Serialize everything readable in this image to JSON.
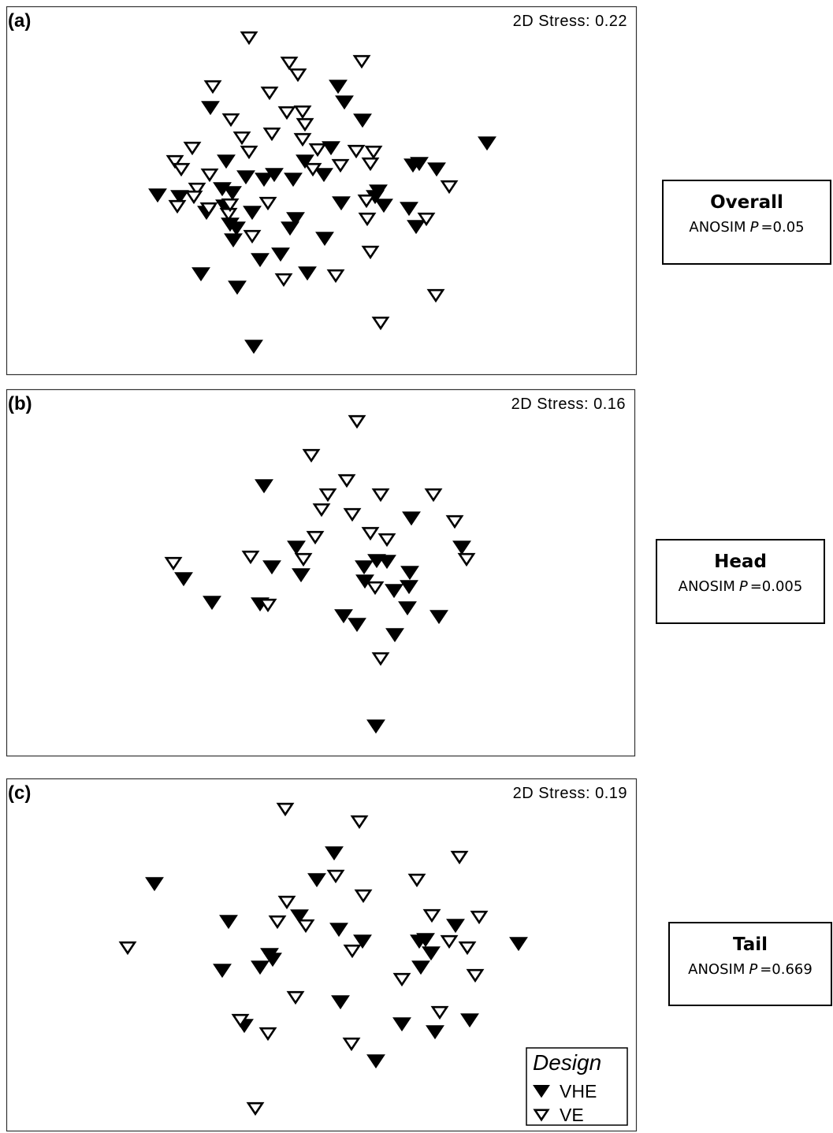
{
  "chart_data": [
    {
      "type": "scatter",
      "panel_label": "(a)",
      "annotation": "2D Stress: 0.22",
      "side_box": {
        "title": "Overall",
        "test": "ANOSIM",
        "stat": "P",
        "result": "=0.05"
      },
      "xlim": [
        0,
        800
      ],
      "ylim": [
        0,
        468
      ],
      "grid": false,
      "series": [
        {
          "marker": "filled",
          "color": "#000000",
          "x": [
            421,
            429,
            452,
            259,
            610,
            412,
            379,
            192,
            220,
            274,
            287,
            277,
            254,
            284,
            292,
            288,
            312,
            327,
            340,
            364,
            304,
            279,
            322,
            348,
            367,
            360,
            404,
            425,
            472,
            468,
            479,
            511,
            520,
            516,
            524,
            546,
            403,
            247,
            293,
            382,
            314
          ],
          "y": [
            366,
            346,
            323,
            339,
            294,
            288,
            271,
            228,
            226,
            236,
            231,
            214,
            206,
            191,
            186,
            171,
            206,
            248,
            254,
            248,
            251,
            271,
            146,
            153,
            198,
            186,
            173,
            218,
            233,
            226,
            215,
            211,
            188,
            266,
            268,
            261,
            254,
            128,
            111,
            129,
            36
          ]
        },
        {
          "marker": "open",
          "color": "#000000",
          "x": [
            308,
            359,
            370,
            451,
            262,
            334,
            285,
            356,
            376,
            379,
            337,
            299,
            376,
            395,
            308,
            236,
            214,
            222,
            258,
            242,
            217,
            238,
            257,
            282,
            312,
            332,
            389,
            424,
            444,
            466,
            462,
            457,
            458,
            462,
            352,
            418,
            533,
            562,
            545,
            475,
            284
          ],
          "y": [
            428,
            396,
            381,
            398,
            366,
            358,
            324,
            333,
            334,
            318,
            306,
            301,
            299,
            286,
            283,
            288,
            271,
            261,
            254,
            236,
            214,
            226,
            211,
            204,
            176,
            218,
            261,
            266,
            284,
            283,
            268,
            221,
            198,
            156,
            121,
            126,
            198,
            239,
            101,
            66,
            216
          ]
        }
      ]
    },
    {
      "type": "scatter",
      "panel_label": "(b)",
      "annotation": "2D Stress: 0.16",
      "side_box": {
        "title": "Head",
        "test": "ANOSIM",
        "stat": "P",
        "result": "=0.005"
      },
      "xlim": [
        0,
        798
      ],
      "ylim": [
        0,
        466
      ],
      "grid": false,
      "series": [
        {
          "marker": "filled",
          "color": "#000000",
          "x": [
            327,
            514,
            368,
            578,
            225,
            337,
            374,
            454,
            470,
            483,
            512,
            455,
            492,
            511,
            509,
            261,
            322,
            428,
            445,
            493,
            549,
            469
          ],
          "y": [
            343,
            302,
            265,
            265,
            225,
            240,
            230,
            240,
            248,
            247,
            233,
            222,
            210,
            215,
            188,
            195,
            193,
            178,
            167,
            154,
            177,
            38
          ]
        },
        {
          "marker": "open",
          "color": "#000000",
          "x": [
            445,
            387,
            432,
            408,
            475,
            542,
            400,
            439,
            569,
            392,
            462,
            483,
            584,
            212,
            310,
            377,
            468,
            332,
            475
          ],
          "y": [
            425,
            382,
            350,
            332,
            332,
            332,
            313,
            307,
            298,
            278,
            283,
            275,
            250,
            245,
            253,
            250,
            214,
            192,
            124
          ]
        }
      ]
    },
    {
      "type": "scatter",
      "panel_label": "(c)",
      "annotation": "2D Stress: 0.19",
      "side_box": {
        "title": "Tail",
        "test": "ANOSIM",
        "stat": "P",
        "result": "=0.669"
      },
      "xlim": [
        0,
        800
      ],
      "ylim": [
        0,
        448
      ],
      "grid": false,
      "legend": "bottom-right",
      "legend_title": "Design",
      "series": [
        {
          "name": "VHE",
          "marker": "filled",
          "color": "#000000",
          "x": [
            416,
            188,
            394,
            372,
            282,
            422,
            570,
            452,
            524,
            532,
            539,
            650,
            334,
            338,
            274,
            322,
            526,
            424,
            302,
            502,
            544,
            588,
            469
          ],
          "y": [
            353,
            314,
            319,
            273,
            266,
            256,
            261,
            241,
            241,
            243,
            226,
            238,
            224,
            218,
            204,
            208,
            208,
            164,
            134,
            136,
            126,
            141,
            89
          ]
        },
        {
          "name": "VE",
          "marker": "open",
          "color": "#000000",
          "x": [
            354,
            448,
            575,
            418,
            521,
            453,
            356,
            344,
            380,
            540,
            600,
            562,
            585,
            439,
            154,
            502,
            595,
            367,
            550,
            297,
            332,
            438,
            316
          ],
          "y": [
            409,
            393,
            348,
            324,
            319,
            299,
            291,
            266,
            261,
            274,
            272,
            241,
            233,
            229,
            233,
            193,
            198,
            170,
            151,
            141,
            124,
            111,
            29
          ]
        }
      ]
    }
  ]
}
